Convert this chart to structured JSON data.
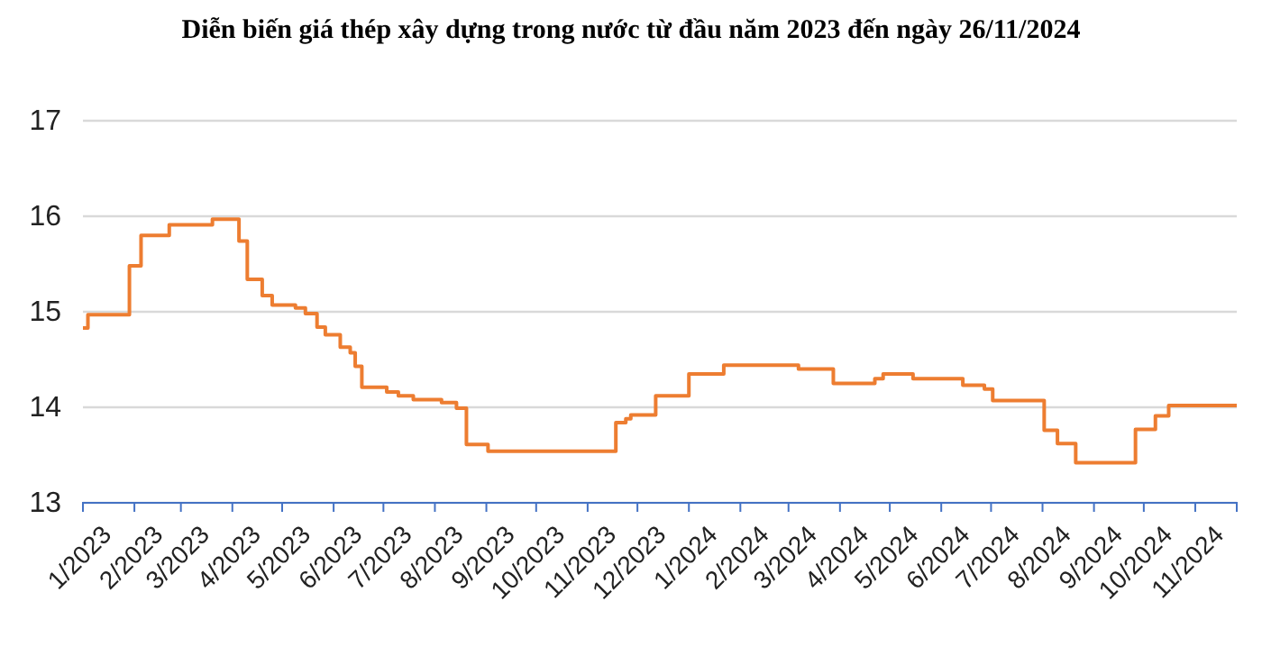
{
  "chart_data": {
    "type": "step",
    "title": "Diễn biến giá thép xây dựng trong nước từ đầu năm 2023 đến ngày 26/11/2024",
    "x": [
      "2023-01-01",
      "2023-01-04",
      "2023-01-29",
      "2023-02-05",
      "2023-02-22",
      "2023-03-20",
      "2023-04-05",
      "2023-04-10",
      "2023-04-19",
      "2023-04-25",
      "2023-05-09",
      "2023-05-15",
      "2023-05-22",
      "2023-05-27",
      "2023-06-05",
      "2023-06-11",
      "2023-06-14",
      "2023-06-18",
      "2023-07-03",
      "2023-07-10",
      "2023-07-19",
      "2023-08-05",
      "2023-08-14",
      "2023-08-20",
      "2023-09-02",
      "2023-11-18",
      "2023-11-24",
      "2023-11-27",
      "2023-12-12",
      "2024-01-01",
      "2024-01-22",
      "2024-03-07",
      "2024-03-28",
      "2024-04-22",
      "2024-04-27",
      "2024-05-15",
      "2024-06-14",
      "2024-06-27",
      "2024-07-02",
      "2024-08-02",
      "2024-08-10",
      "2024-08-21",
      "2024-09-26",
      "2024-10-08",
      "2024-10-16",
      "2024-11-26"
    ],
    "series": [
      {
        "color": "#ed7d31",
        "values": [
          14.83,
          14.97,
          15.48,
          15.8,
          15.91,
          15.97,
          15.74,
          15.34,
          15.17,
          15.07,
          15.04,
          14.98,
          14.84,
          14.76,
          14.63,
          14.57,
          14.43,
          14.21,
          14.16,
          14.12,
          14.08,
          14.05,
          13.99,
          13.61,
          13.54,
          13.84,
          13.88,
          13.92,
          14.12,
          14.35,
          14.44,
          14.4,
          14.25,
          14.3,
          14.35,
          14.3,
          14.23,
          14.19,
          14.07,
          13.76,
          13.62,
          13.42,
          13.77,
          13.91,
          14.02,
          14.02
        ]
      }
    ],
    "xlim": [
      "2023-01-01",
      "2024-11-26"
    ],
    "xticks": [
      {
        "value": "2023-01-01",
        "label": "1/2023"
      },
      {
        "value": "2023-02-01",
        "label": "2/2023"
      },
      {
        "value": "2023-03-01",
        "label": "3/2023"
      },
      {
        "value": "2023-04-01",
        "label": "4/2023"
      },
      {
        "value": "2023-05-01",
        "label": "5/2023"
      },
      {
        "value": "2023-06-01",
        "label": "6/2023"
      },
      {
        "value": "2023-07-01",
        "label": "7/2023"
      },
      {
        "value": "2023-08-01",
        "label": "8/2023"
      },
      {
        "value": "2023-09-01",
        "label": "9/2023"
      },
      {
        "value": "2023-10-01",
        "label": "10/2023"
      },
      {
        "value": "2023-11-01",
        "label": "11/2023"
      },
      {
        "value": "2023-12-01",
        "label": "12/2023"
      },
      {
        "value": "2024-01-01",
        "label": "1/2024"
      },
      {
        "value": "2024-02-01",
        "label": "2/2024"
      },
      {
        "value": "2024-03-01",
        "label": "3/2024"
      },
      {
        "value": "2024-04-01",
        "label": "4/2024"
      },
      {
        "value": "2024-05-01",
        "label": "5/2024"
      },
      {
        "value": "2024-06-01",
        "label": "6/2024"
      },
      {
        "value": "2024-07-01",
        "label": "7/2024"
      },
      {
        "value": "2024-08-01",
        "label": "8/2024"
      },
      {
        "value": "2024-09-01",
        "label": "9/2024"
      },
      {
        "value": "2024-10-01",
        "label": "10/2024"
      },
      {
        "value": "2024-11-01",
        "label": "11/2024"
      }
    ],
    "ylim": [
      13,
      17
    ],
    "yticks": [
      13,
      14,
      15,
      16,
      17
    ],
    "grid": "y",
    "marker": "none",
    "line_style": "solid"
  }
}
